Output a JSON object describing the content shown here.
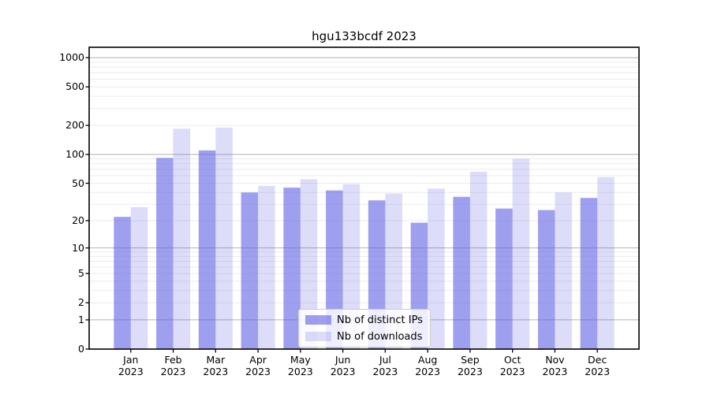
{
  "chart_data": {
    "type": "bar",
    "title": "hgu133bcdf 2023",
    "year_label": "2023",
    "categories": [
      "Jan",
      "Feb",
      "Mar",
      "Apr",
      "May",
      "Jun",
      "Jul",
      "Aug",
      "Sep",
      "Oct",
      "Nov",
      "Dec"
    ],
    "series": [
      {
        "name": "Nb of distinct IPs",
        "values": [
          22,
          92,
          110,
          40,
          45,
          42,
          33,
          19,
          36,
          27,
          26,
          35
        ],
        "color": "rgba(100, 100, 230, 0.62)"
      },
      {
        "name": "Nb of downloads",
        "values": [
          28,
          185,
          190,
          47,
          55,
          49,
          39,
          44,
          66,
          90,
          40,
          58
        ],
        "color": "rgba(100, 100, 230, 0.22)"
      }
    ],
    "y_ticks": [
      0,
      1,
      2,
      5,
      10,
      20,
      50,
      100,
      200,
      500,
      1000
    ],
    "y_scale": "log10(value+1)",
    "ylim": [
      0,
      1000
    ],
    "xlabel": "",
    "ylabel": "",
    "grid": {
      "major_at": [
        1,
        10,
        100,
        1000
      ],
      "major_color": "#b0b0b0",
      "minor_color": "#ebebeb"
    },
    "axis_color": "#000000",
    "legend_position": "bottom-center"
  }
}
